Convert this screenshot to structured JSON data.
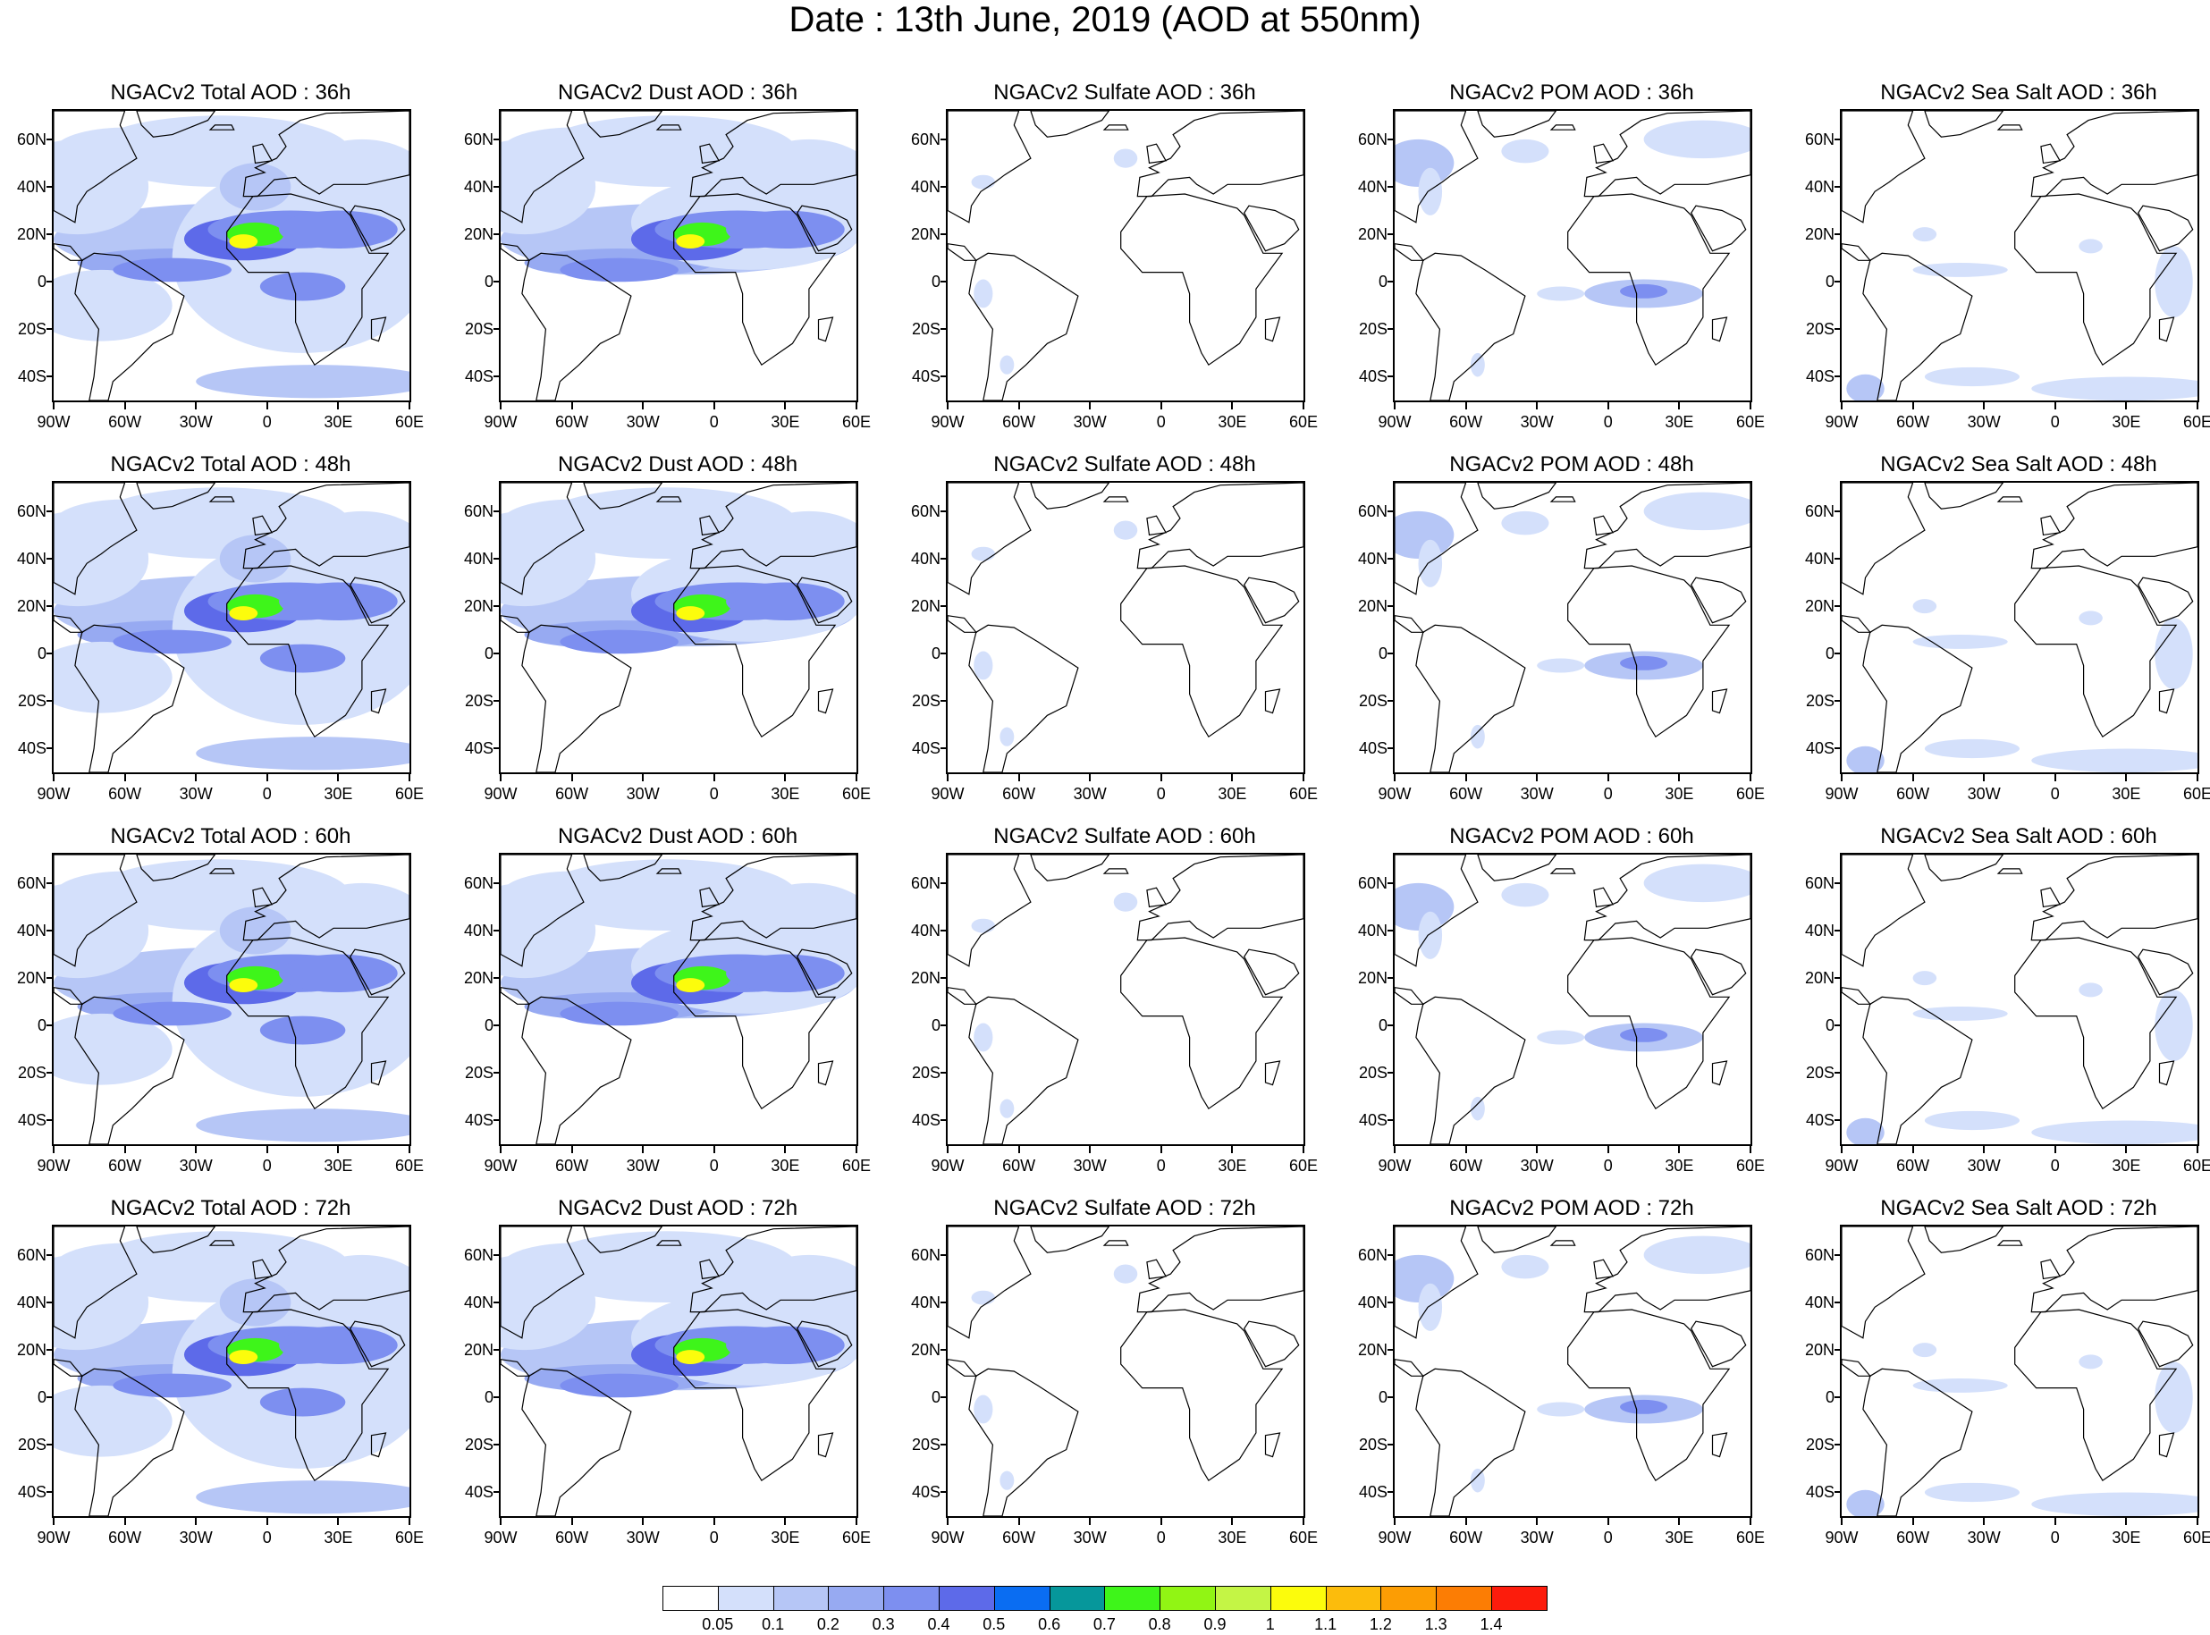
{
  "title": "Date : 13th June, 2019 (AOD at 550nm)",
  "axes": {
    "lat_labels": [
      "60N",
      "40N",
      "20N",
      "0",
      "20S",
      "40S"
    ],
    "lon_labels": [
      "90W",
      "60W",
      "30W",
      "0",
      "30E",
      "60E"
    ]
  },
  "panels": [
    {
      "title": "NGACv2 Total AOD : 36h",
      "species": "total"
    },
    {
      "title": "NGACv2 Dust AOD : 36h",
      "species": "dust"
    },
    {
      "title": "NGACv2 Sulfate AOD : 36h",
      "species": "sulfate"
    },
    {
      "title": "NGACv2 POM AOD : 36h",
      "species": "pom"
    },
    {
      "title": "NGACv2 Sea Salt AOD : 36h",
      "species": "seasalt"
    },
    {
      "title": "NGACv2 Total AOD : 48h",
      "species": "total"
    },
    {
      "title": "NGACv2 Dust AOD : 48h",
      "species": "dust"
    },
    {
      "title": "NGACv2 Sulfate AOD : 48h",
      "species": "sulfate"
    },
    {
      "title": "NGACv2 POM AOD : 48h",
      "species": "pom"
    },
    {
      "title": "NGACv2 Sea Salt AOD : 48h",
      "species": "seasalt"
    },
    {
      "title": "NGACv2 Total AOD : 60h",
      "species": "total"
    },
    {
      "title": "NGACv2 Dust AOD : 60h",
      "species": "dust"
    },
    {
      "title": "NGACv2 Sulfate AOD : 60h",
      "species": "sulfate"
    },
    {
      "title": "NGACv2 POM AOD : 60h",
      "species": "pom"
    },
    {
      "title": "NGACv2 Sea Salt AOD : 60h",
      "species": "seasalt"
    },
    {
      "title": "NGACv2 Total AOD : 72h",
      "species": "total"
    },
    {
      "title": "NGACv2 Dust AOD : 72h",
      "species": "dust"
    },
    {
      "title": "NGACv2 Sulfate AOD : 72h",
      "species": "sulfate"
    },
    {
      "title": "NGACv2 POM AOD : 72h",
      "species": "pom"
    },
    {
      "title": "NGACv2 Sea Salt  AOD : 72h",
      "species": "seasalt"
    }
  ],
  "colorbar": {
    "labels": [
      "0.05",
      "0.1",
      "0.2",
      "0.3",
      "0.4",
      "0.5",
      "0.6",
      "0.7",
      "0.8",
      "0.9",
      "1",
      "1.1",
      "1.2",
      "1.3",
      "1.4"
    ],
    "colors": [
      "#ffffff",
      "#d4e0fb",
      "#b6c6f6",
      "#97aaf2",
      "#7d8ff0",
      "#5d6ae9",
      "#0a6df2",
      "#06979b",
      "#3ef51a",
      "#91f514",
      "#c4f545",
      "#fcfc0c",
      "#fcbc0c",
      "#fc9d04",
      "#fc7d04",
      "#fc1c0c"
    ]
  }
}
